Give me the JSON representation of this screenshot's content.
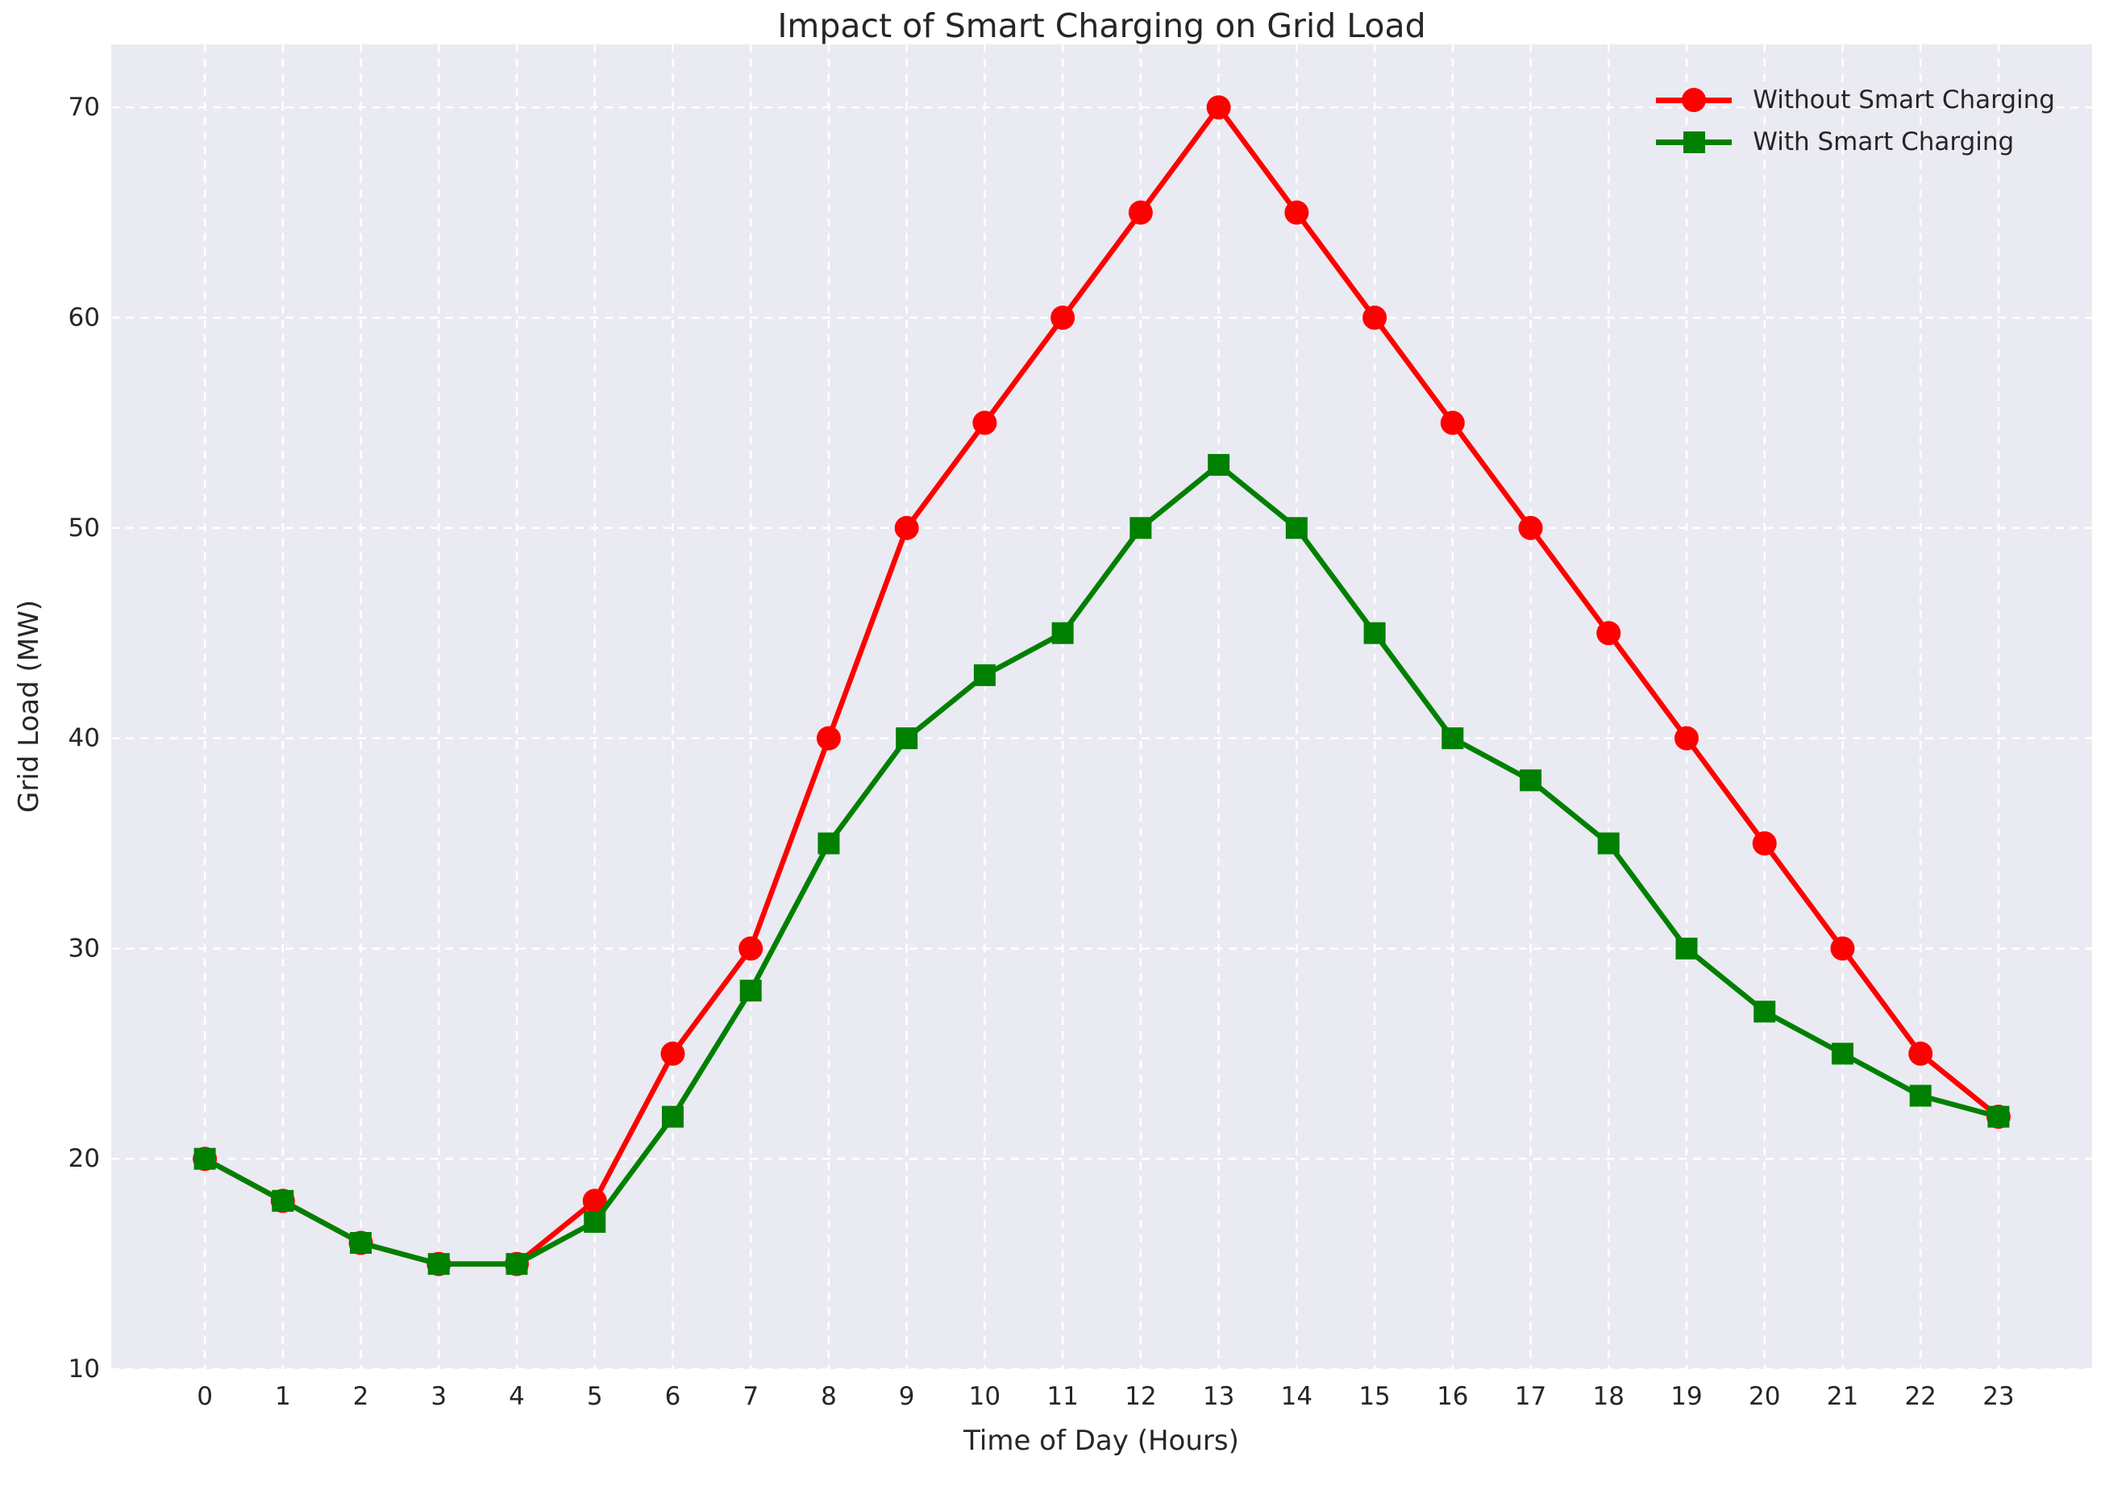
{
  "figure": {
    "title": "Impact of Smart Charging on Grid Load",
    "background_color": "#ffffff",
    "plot_background_color": "#eaeaf2",
    "grid_color": "#ffffff",
    "text_color": "#262626"
  },
  "chart_data": {
    "type": "line",
    "title": "Impact of Smart Charging on Grid Load",
    "xlabel": "Time of Day (Hours)",
    "ylabel": "Grid Load (MW)",
    "x": [
      0,
      1,
      2,
      3,
      4,
      5,
      6,
      7,
      8,
      9,
      10,
      11,
      12,
      13,
      14,
      15,
      16,
      17,
      18,
      19,
      20,
      21,
      22,
      23
    ],
    "xtick_labels": [
      "0",
      "1",
      "2",
      "3",
      "4",
      "5",
      "6",
      "7",
      "8",
      "9",
      "10",
      "11",
      "12",
      "13",
      "14",
      "15",
      "16",
      "17",
      "18",
      "19",
      "20",
      "21",
      "22",
      "23"
    ],
    "yticks": [
      10,
      20,
      30,
      40,
      50,
      60,
      70
    ],
    "ytick_labels": [
      "10",
      "20",
      "30",
      "40",
      "50",
      "60",
      "70"
    ],
    "xlim": [
      -1.2,
      24.2
    ],
    "ylim": [
      10,
      73
    ],
    "grid": true,
    "grid_style": "dashed",
    "legend_position": "upper right",
    "series": [
      {
        "name": "Without Smart Charging",
        "color": "#ff0000",
        "marker": "circle",
        "values": [
          20,
          18,
          16,
          15,
          15,
          18,
          25,
          30,
          40,
          50,
          55,
          60,
          65,
          70,
          65,
          60,
          55,
          50,
          45,
          40,
          35,
          30,
          25,
          22
        ]
      },
      {
        "name": "With Smart Charging",
        "color": "#008000",
        "marker": "square",
        "values": [
          20,
          18,
          16,
          15,
          15,
          17,
          22,
          28,
          35,
          40,
          43,
          45,
          50,
          53,
          50,
          45,
          40,
          38,
          35,
          30,
          27,
          25,
          23,
          22
        ]
      }
    ]
  }
}
